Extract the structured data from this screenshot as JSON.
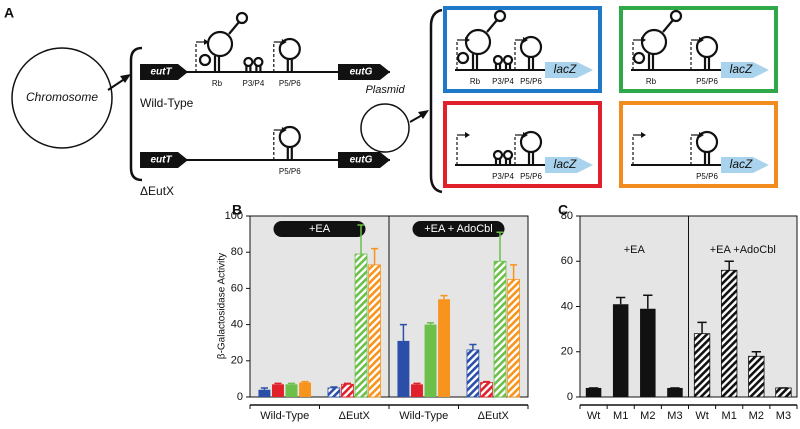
{
  "diagram": {
    "panel_label": "A",
    "chromosome": "Chromosome",
    "plasmid": "Plasmid",
    "wild_type": {
      "label": "Wild-Type",
      "gene_left": "eutT",
      "gene_right": "eutG",
      "elements": [
        "Rb",
        "P3/P4",
        "P5/P6"
      ]
    },
    "deletion": {
      "label": "ΔEutX",
      "gene_left": "eutT",
      "gene_right": "eutG",
      "elements": [
        "P5/P6"
      ]
    },
    "constructs": [
      {
        "color": "#1f78c8",
        "elements": [
          "Rb",
          "P3/P4",
          "P5/P6"
        ],
        "reporter": "lacZ"
      },
      {
        "color": "#2fa84a",
        "elements": [
          "Rb",
          "P5/P6"
        ],
        "reporter": "lacZ"
      },
      {
        "color": "#e0202a",
        "elements": [
          "P3/P4",
          "P5/P6"
        ],
        "reporter": "lacZ"
      },
      {
        "color": "#f28c1e",
        "elements": [
          "P5/P6"
        ],
        "reporter": "lacZ"
      }
    ]
  },
  "chart_data": [
    {
      "type": "bar",
      "panel_label": "B",
      "ylabel": "β-Galactosidase Activity",
      "ylim": [
        0,
        100
      ],
      "yticks": [
        0,
        20,
        40,
        60,
        80,
        100
      ],
      "categories": [
        "Wild-Type",
        "ΔEutX",
        "Wild-Type",
        "ΔEutX"
      ],
      "hatched": [
        false,
        true,
        false,
        true
      ],
      "conditions": [
        "+EA",
        "+EA + AdoCbl"
      ],
      "condition_badge": true,
      "series": [
        {
          "color": "#2b4fa8",
          "values": [
            4,
            5,
            31,
            26
          ],
          "errors": [
            1,
            0.5,
            9,
            3
          ]
        },
        {
          "color": "#e0202a",
          "values": [
            7,
            7,
            7,
            8
          ],
          "errors": [
            0.5,
            0.5,
            0.5,
            0.5
          ]
        },
        {
          "color": "#6cc04a",
          "values": [
            7,
            79,
            40,
            75
          ],
          "errors": [
            0.5,
            16,
            1,
            16
          ]
        },
        {
          "color": "#f7941d",
          "values": [
            8,
            73,
            54,
            65
          ],
          "errors": [
            0.5,
            9,
            2,
            8
          ]
        }
      ]
    },
    {
      "type": "bar",
      "panel_label": "C",
      "ylim": [
        0,
        80
      ],
      "yticks": [
        0,
        20,
        40,
        60,
        80
      ],
      "categories": [
        "Wt",
        "M1",
        "M2",
        "M3",
        "Wt",
        "M1",
        "M2",
        "M3"
      ],
      "hatched": [
        false,
        false,
        false,
        false,
        true,
        true,
        true,
        true
      ],
      "conditions": [
        "+EA",
        "+EA +AdoCbl"
      ],
      "condition_badge": false,
      "color": "#111111",
      "values": [
        4,
        41,
        39,
        4,
        28,
        56,
        18,
        4
      ],
      "errors": [
        0,
        3,
        6,
        0,
        5,
        4,
        2,
        0
      ]
    }
  ]
}
